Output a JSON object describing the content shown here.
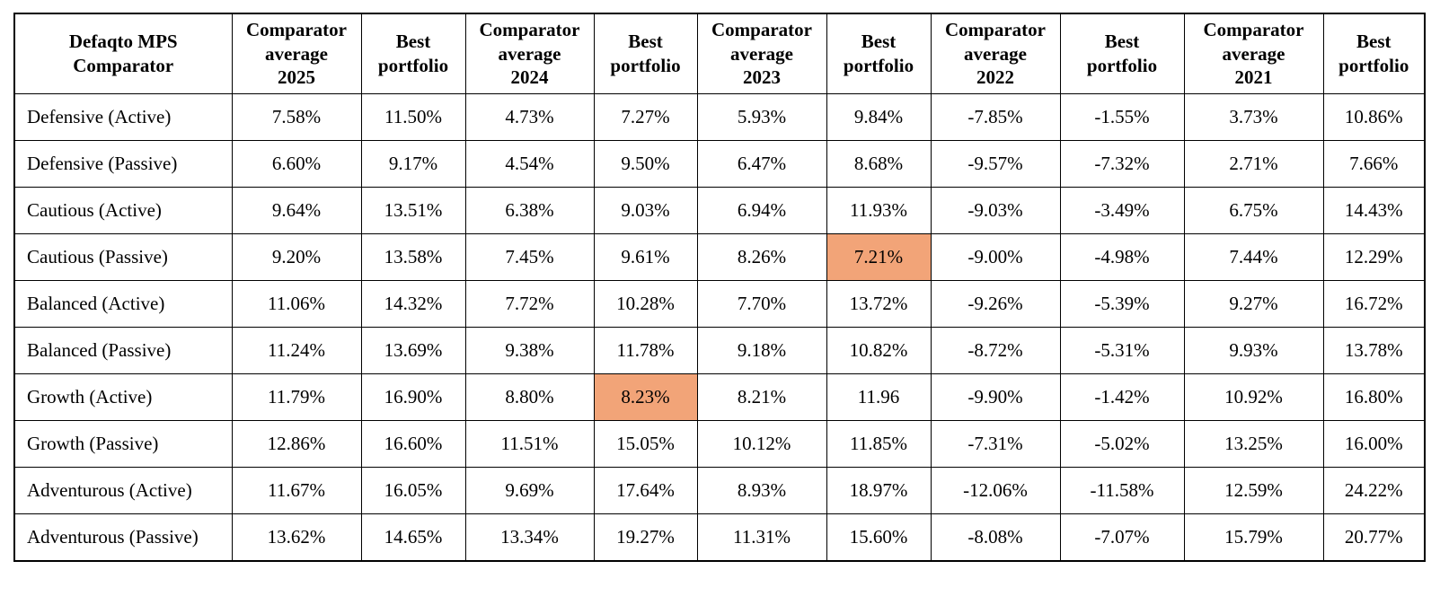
{
  "table": {
    "corner_label": "Defaqto MPS\nComparator",
    "columns": [
      "Comparator\naverage\n2025",
      "Best\nportfolio",
      "Comparator\naverage\n2024",
      "Best\nportfolio",
      "Comparator\naverage\n2023",
      "Best\nportfolio",
      "Comparator\naverage\n2022",
      "Best\nportfolio",
      "Comparator\naverage\n2021",
      "Best\nportfolio"
    ],
    "rows": [
      {
        "label": "Defensive (Active)",
        "values": [
          "7.58%",
          "11.50%",
          "4.73%",
          "7.27%",
          "5.93%",
          "9.84%",
          "-7.85%",
          "-1.55%",
          "3.73%",
          "10.86%"
        ],
        "highlight": []
      },
      {
        "label": "Defensive (Passive)",
        "values": [
          "6.60%",
          "9.17%",
          "4.54%",
          "9.50%",
          "6.47%",
          "8.68%",
          "-9.57%",
          "-7.32%",
          "2.71%",
          "7.66%"
        ],
        "highlight": []
      },
      {
        "label": "Cautious (Active)",
        "values": [
          "9.64%",
          "13.51%",
          "6.38%",
          "9.03%",
          "6.94%",
          "11.93%",
          "-9.03%",
          "-3.49%",
          "6.75%",
          "14.43%"
        ],
        "highlight": []
      },
      {
        "label": "Cautious (Passive)",
        "values": [
          "9.20%",
          "13.58%",
          "7.45%",
          "9.61%",
          "8.26%",
          "7.21%",
          "-9.00%",
          "-4.98%",
          "7.44%",
          "12.29%"
        ],
        "highlight": [
          5
        ]
      },
      {
        "label": "Balanced (Active)",
        "values": [
          "11.06%",
          "14.32%",
          "7.72%",
          "10.28%",
          "7.70%",
          "13.72%",
          "-9.26%",
          "-5.39%",
          "9.27%",
          "16.72%"
        ],
        "highlight": []
      },
      {
        "label": "Balanced (Passive)",
        "values": [
          "11.24%",
          "13.69%",
          "9.38%",
          "11.78%",
          "9.18%",
          "10.82%",
          "-8.72%",
          "-5.31%",
          "9.93%",
          "13.78%"
        ],
        "highlight": []
      },
      {
        "label": "Growth (Active)",
        "values": [
          "11.79%",
          "16.90%",
          "8.80%",
          "8.23%",
          "8.21%",
          "11.96",
          "-9.90%",
          "-1.42%",
          "10.92%",
          "16.80%"
        ],
        "highlight": [
          3
        ]
      },
      {
        "label": "Growth (Passive)",
        "values": [
          "12.86%",
          "16.60%",
          "11.51%",
          "15.05%",
          "10.12%",
          "11.85%",
          "-7.31%",
          "-5.02%",
          "13.25%",
          "16.00%"
        ],
        "highlight": []
      },
      {
        "label": "Adventurous (Active)",
        "values": [
          "11.67%",
          "16.05%",
          "9.69%",
          "17.64%",
          "8.93%",
          "18.97%",
          "-12.06%",
          "-11.58%",
          "12.59%",
          "24.22%"
        ],
        "highlight": []
      },
      {
        "label": "Adventurous (Passive)",
        "values": [
          "13.62%",
          "14.65%",
          "13.34%",
          "19.27%",
          "11.31%",
          "15.60%",
          "-8.08%",
          "-7.07%",
          "15.79%",
          "20.77%"
        ],
        "highlight": []
      }
    ]
  },
  "colors": {
    "highlight": "#F2A478",
    "border": "#000000",
    "background": "#FFFFFF",
    "text": "#000000"
  }
}
